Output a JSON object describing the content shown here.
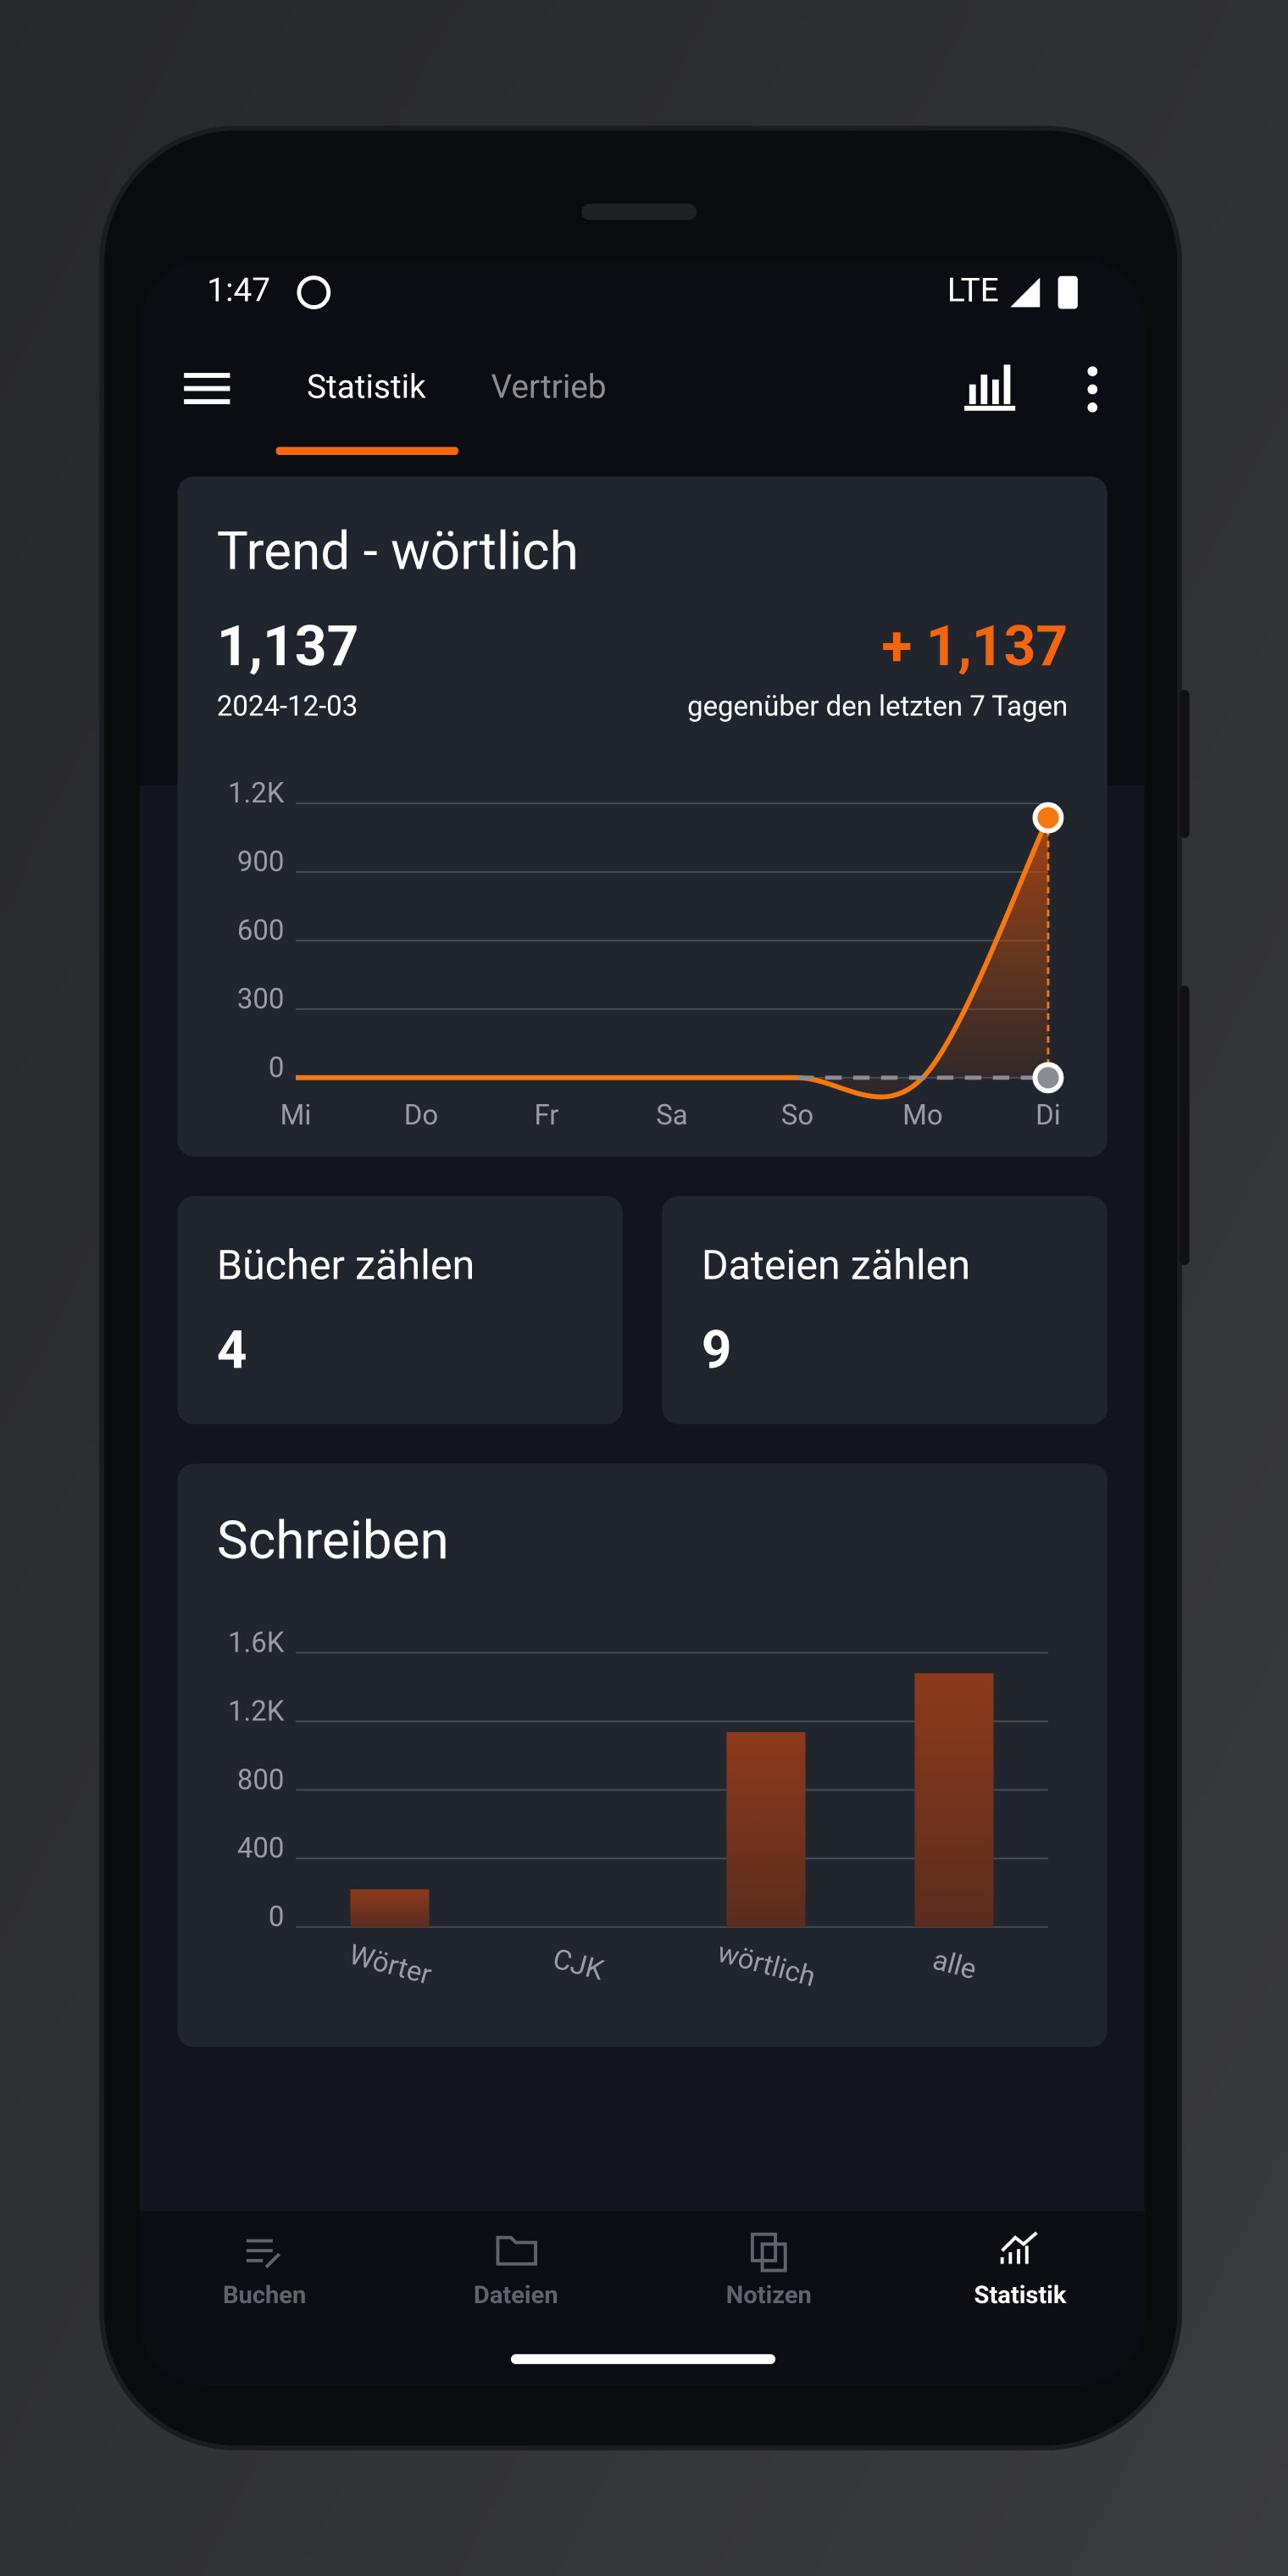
{
  "status_bar": {
    "time": "1:47",
    "network": "LTE"
  },
  "tabs": [
    "Statistik",
    "Vertrieb"
  ],
  "trend_card": {
    "title": "Trend - wörtlich",
    "value": "1,137",
    "date": "2024-12-03",
    "change": "+ 1,137",
    "change_caption": "gegenüber den letzten 7 Tagen",
    "chart": {
      "type": "line",
      "categories": [
        "Mi",
        "Do",
        "Fr",
        "Sa",
        "So",
        "Mo",
        "Di"
      ],
      "series": [
        {
          "color": "#f5780f",
          "values": [
            0,
            0,
            0,
            0,
            0,
            0,
            1137
          ]
        },
        {
          "color": "#8a8d93",
          "dashed": true,
          "values": [
            null,
            null,
            null,
            null,
            0,
            0,
            0
          ]
        }
      ],
      "ylim": [
        0,
        1200
      ],
      "yticks": [
        0,
        300,
        600,
        900,
        {
          "value": 1200,
          "label": "1.2K"
        }
      ],
      "grid": true
    }
  },
  "counts": [
    {
      "label": "Bücher zählen",
      "value": "4"
    },
    {
      "label": "Dateien zählen",
      "value": "9"
    }
  ],
  "writing_card": {
    "title": "Schreiben",
    "chart": {
      "type": "bar",
      "categories": [
        "Wörter",
        "CJK",
        "wörtlich",
        "alle"
      ],
      "values": [
        220,
        0,
        1137,
        1480
      ],
      "color": "#8c3a1e",
      "ylim": [
        0,
        1600
      ],
      "yticks": [
        0,
        400,
        800,
        {
          "value": 1200,
          "label": "1.2K"
        },
        {
          "value": 1600,
          "label": "1.6K"
        }
      ],
      "grid": true
    }
  },
  "bottom_nav": [
    "Buchen",
    "Dateien",
    "Notizen",
    "Statistik"
  ]
}
